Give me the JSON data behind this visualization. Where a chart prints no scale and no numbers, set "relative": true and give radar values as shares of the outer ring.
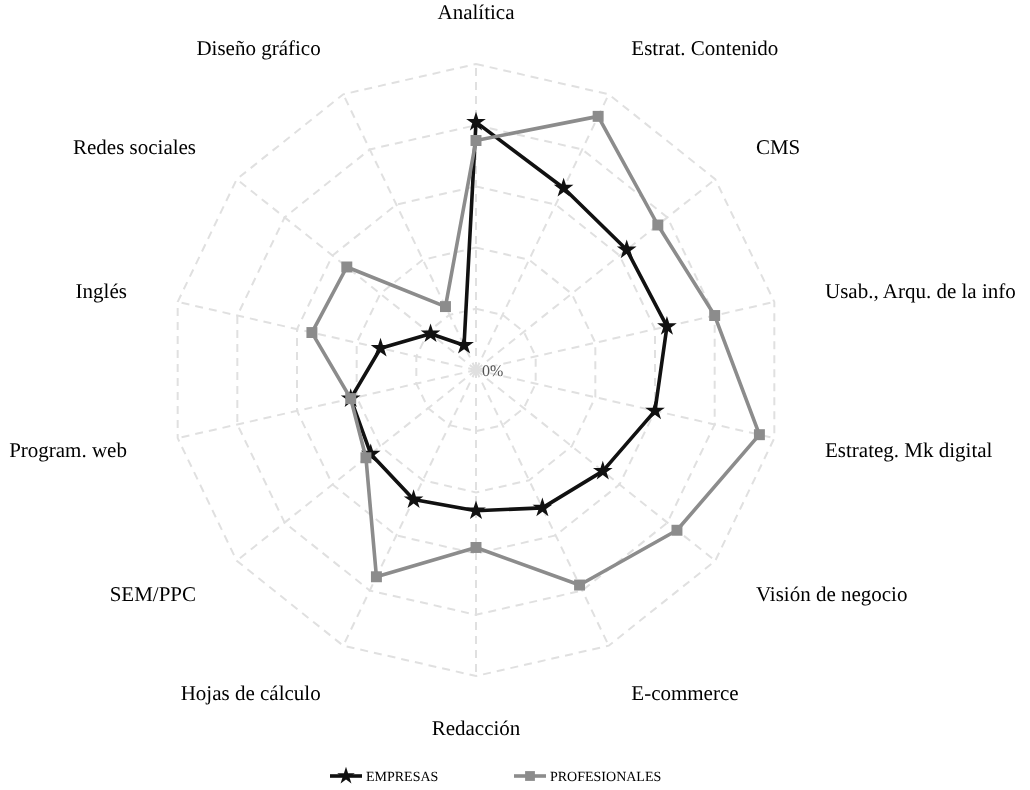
{
  "chart_data": {
    "type": "radar",
    "relative": true,
    "categories": [
      "Analítica",
      "Estrat. Contenido",
      "CMS",
      "Usab., Arqu. de la info",
      "Estrateg. Mk digital",
      "Visión de negocio",
      "E-commerce",
      "Redacción",
      "Hojas de cálculo",
      "SEM/PPC",
      "Program. web",
      "Inglés",
      "Redes sociales",
      "Diseño gráfico"
    ],
    "series": [
      {
        "name": "EMPRESAS",
        "color": "#111111",
        "marker": "star",
        "values": [
          0.81,
          0.66,
          0.63,
          0.64,
          0.6,
          0.53,
          0.5,
          0.46,
          0.47,
          0.44,
          0.42,
          0.32,
          0.19,
          0.09
        ]
      },
      {
        "name": "PROFESIONALES",
        "color": "#8c8c8c",
        "marker": "square",
        "values": [
          0.75,
          0.92,
          0.76,
          0.8,
          0.95,
          0.84,
          0.78,
          0.58,
          0.75,
          0.46,
          0.42,
          0.55,
          0.54,
          0.23
        ]
      }
    ],
    "annotations": [
      "0%"
    ],
    "grid": true,
    "legend": "bottom",
    "line_style": "solid"
  }
}
